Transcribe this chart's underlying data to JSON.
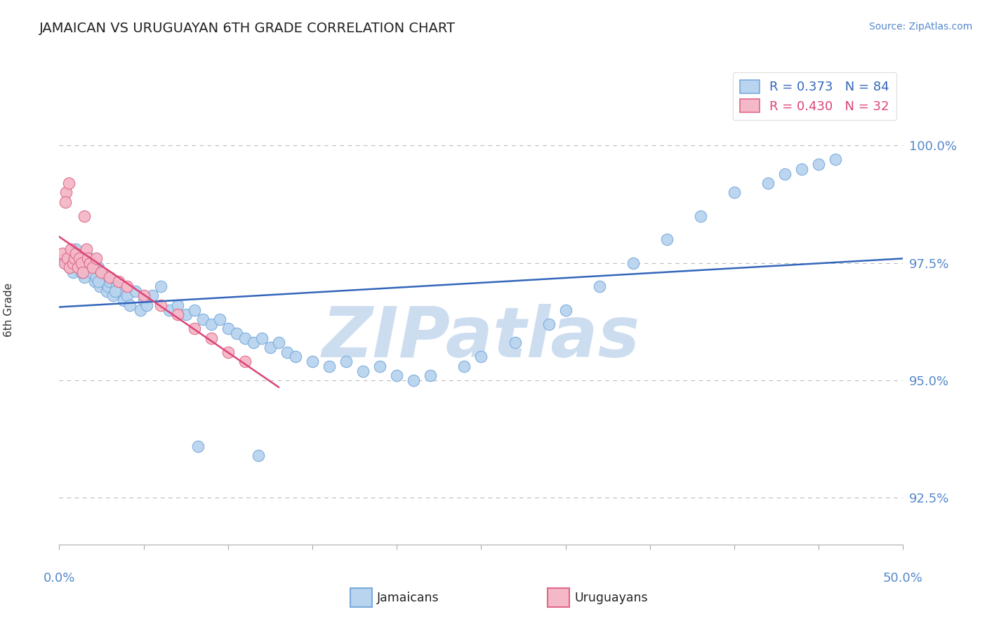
{
  "title": "JAMAICAN VS URUGUAYAN 6TH GRADE CORRELATION CHART",
  "source_text": "Source: ZipAtlas.com",
  "ylabel": "6th Grade",
  "xlim": [
    0.0,
    50.0
  ],
  "ylim": [
    91.5,
    101.5
  ],
  "yticks": [
    92.5,
    95.0,
    97.5,
    100.0
  ],
  "ytick_labels": [
    "92.5%",
    "95.0%",
    "97.5%",
    "100.0%"
  ],
  "blue_r": 0.373,
  "blue_n": 84,
  "pink_r": 0.43,
  "pink_n": 32,
  "blue_color": "#b8d4ee",
  "blue_edge_color": "#7aaadd",
  "pink_color": "#f4b8c8",
  "pink_edge_color": "#e06888",
  "blue_line_color": "#3366bb",
  "pink_line_color": "#dd4477",
  "grid_color": "#bbbbbb",
  "watermark_color": "#cdddf0",
  "watermark_text": "ZIPatlas",
  "title_color": "#222222",
  "axis_label_color": "#5588cc",
  "blue_x": [
    0.3,
    0.5,
    0.6,
    0.7,
    0.8,
    0.9,
    1.0,
    1.1,
    1.2,
    1.3,
    1.4,
    1.5,
    1.6,
    1.7,
    1.8,
    1.9,
    2.0,
    2.1,
    2.2,
    2.3,
    2.4,
    2.5,
    2.6,
    2.7,
    2.8,
    2.9,
    3.0,
    3.2,
    3.4,
    3.6,
    3.8,
    4.0,
    4.2,
    4.5,
    4.8,
    5.0,
    5.5,
    6.0,
    6.5,
    7.0,
    7.5,
    8.0,
    8.5,
    9.0,
    9.5,
    10.0,
    10.5,
    11.0,
    11.5,
    12.0,
    12.5,
    13.0,
    13.5,
    14.0,
    15.0,
    16.0,
    17.0,
    18.0,
    19.0,
    20.0,
    21.0,
    22.0,
    24.0,
    25.0,
    27.0,
    29.0,
    30.0,
    32.0,
    34.0,
    36.0,
    38.0,
    40.0,
    42.0,
    43.0,
    44.0,
    45.0,
    46.0,
    0.4,
    1.3,
    2.3,
    3.3,
    5.2,
    8.2,
    11.8
  ],
  "blue_y": [
    97.6,
    97.5,
    97.4,
    97.7,
    97.3,
    97.6,
    97.8,
    97.4,
    97.5,
    97.3,
    97.6,
    97.2,
    97.5,
    97.4,
    97.6,
    97.3,
    97.5,
    97.1,
    97.2,
    97.4,
    97.0,
    97.3,
    97.1,
    97.2,
    96.9,
    97.0,
    97.1,
    96.8,
    97.0,
    96.9,
    96.7,
    96.8,
    96.6,
    96.9,
    96.5,
    96.7,
    96.8,
    97.0,
    96.5,
    96.6,
    96.4,
    96.5,
    96.3,
    96.2,
    96.3,
    96.1,
    96.0,
    95.9,
    95.8,
    95.9,
    95.7,
    95.8,
    95.6,
    95.5,
    95.4,
    95.3,
    95.4,
    95.2,
    95.3,
    95.1,
    95.0,
    95.1,
    95.3,
    95.5,
    95.8,
    96.2,
    96.5,
    97.0,
    97.5,
    98.0,
    98.5,
    99.0,
    99.2,
    99.4,
    99.5,
    99.6,
    99.7,
    97.5,
    97.3,
    97.1,
    96.9,
    96.6,
    93.6,
    93.4
  ],
  "pink_x": [
    0.2,
    0.3,
    0.4,
    0.5,
    0.6,
    0.7,
    0.8,
    0.9,
    1.0,
    1.1,
    1.2,
    1.3,
    1.4,
    1.5,
    1.6,
    1.7,
    1.8,
    2.0,
    2.2,
    2.5,
    3.0,
    3.5,
    4.0,
    5.0,
    6.0,
    7.0,
    8.0,
    9.0,
    10.0,
    11.0,
    0.35,
    0.55
  ],
  "pink_y": [
    97.7,
    97.5,
    99.0,
    97.6,
    97.4,
    97.8,
    97.5,
    97.6,
    97.7,
    97.4,
    97.6,
    97.5,
    97.3,
    98.5,
    97.8,
    97.6,
    97.5,
    97.4,
    97.6,
    97.3,
    97.2,
    97.1,
    97.0,
    96.8,
    96.6,
    96.4,
    96.1,
    95.9,
    95.6,
    95.4,
    98.8,
    99.2
  ],
  "pink_line_xrange": [
    0,
    13
  ],
  "blue_line_xrange": [
    0,
    50
  ]
}
